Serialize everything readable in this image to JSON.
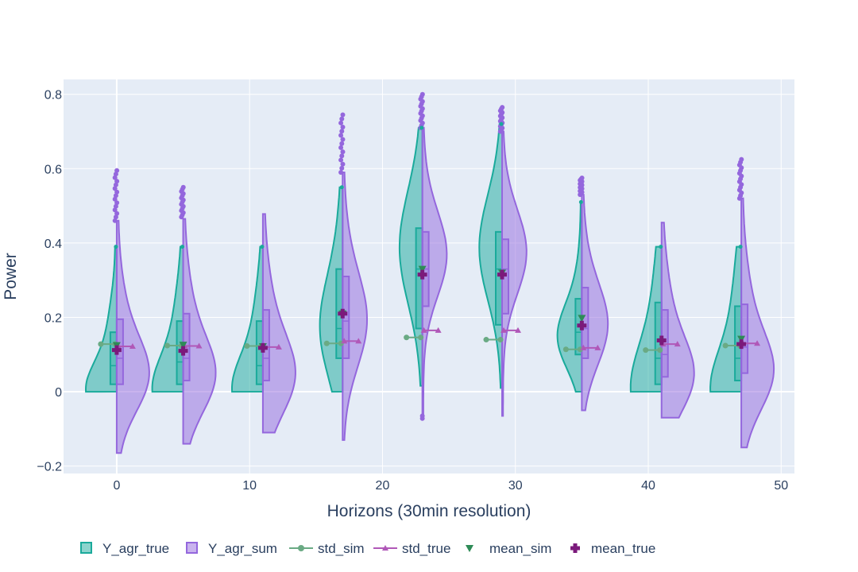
{
  "chart_data": {
    "type": "violin",
    "xlabel": "Horizons (30min resolution)",
    "ylabel": "Power",
    "xlim": [
      -4,
      51
    ],
    "ylim": [
      -0.22,
      0.84
    ],
    "x_ticks": [
      "0",
      "10",
      "20",
      "30",
      "40",
      "50"
    ],
    "y_ticks": [
      "−0.2",
      "0",
      "0.2",
      "0.4",
      "0.6",
      "0.8"
    ],
    "y_tick_values": [
      -0.2,
      0,
      0.2,
      0.4,
      0.6,
      0.8
    ],
    "x_tick_values": [
      0,
      10,
      20,
      30,
      40,
      50
    ],
    "grid": true,
    "legend_position": "bottom",
    "colors": {
      "plot_bg": "#e5ecf6",
      "Y_agr_true": "#1aaa9b",
      "Y_agr_sum": "#9467dd",
      "std_sim": "#6aaa84",
      "std_true": "#b058b8",
      "mean_sim": "#2e8b57",
      "mean_true": "#7b1a7b"
    },
    "groups": [
      {
        "x": 0,
        "true": {
          "min": 0.0,
          "q1": 0.02,
          "median": 0.07,
          "q3": 0.16,
          "max": 0.39,
          "mode": 0.0,
          "width": 0.95
        },
        "sum": {
          "min": -0.165,
          "q1": 0.02,
          "median": 0.09,
          "q3": 0.195,
          "max": 0.46,
          "mode": 0.04,
          "width": 1.0,
          "outliers_from": 0.46,
          "outliers_to": 0.595
        },
        "std_sim": 0.128,
        "std_true": 0.122,
        "mean_sim": 0.125,
        "mean_true": 0.112
      },
      {
        "x": 5,
        "true": {
          "min": 0.0,
          "q1": 0.02,
          "median": 0.08,
          "q3": 0.19,
          "max": 0.39,
          "mode": 0.0,
          "width": 0.95
        },
        "sum": {
          "min": -0.14,
          "q1": 0.03,
          "median": 0.09,
          "q3": 0.21,
          "max": 0.465,
          "mode": 0.04,
          "width": 1.0,
          "outliers_from": 0.47,
          "outliers_to": 0.55
        },
        "std_sim": 0.124,
        "std_true": 0.123,
        "mean_sim": 0.126,
        "mean_true": 0.11
      },
      {
        "x": 11,
        "true": {
          "min": 0.0,
          "q1": 0.02,
          "median": 0.07,
          "q3": 0.19,
          "max": 0.39,
          "mode": 0.0,
          "width": 0.95
        },
        "sum": {
          "min": -0.11,
          "q1": 0.03,
          "median": 0.09,
          "q3": 0.22,
          "max": 0.478,
          "mode": 0.04,
          "width": 1.0
        },
        "std_sim": 0.123,
        "std_true": 0.12,
        "mean_sim": 0.122,
        "mean_true": 0.118
      },
      {
        "x": 17,
        "true": {
          "min": 0.0,
          "q1": 0.09,
          "median": 0.17,
          "q3": 0.33,
          "max": 0.55,
          "mode": 0.16,
          "width": 0.7
        },
        "sum": {
          "min": -0.13,
          "q1": 0.09,
          "median": 0.19,
          "q3": 0.31,
          "max": 0.59,
          "mode": 0.18,
          "width": 0.75,
          "outliers_from": 0.59,
          "outliers_to": 0.745
        },
        "std_sim": 0.13,
        "std_true": 0.136,
        "mean_sim": 0.21,
        "mean_true": 0.21
      },
      {
        "x": 23,
        "true": {
          "min": 0.016,
          "q1": 0.17,
          "median": 0.33,
          "q3": 0.44,
          "max": 0.71,
          "mode": 0.38,
          "width": 0.7
        },
        "sum": {
          "min": -0.07,
          "q1": 0.23,
          "median": 0.33,
          "q3": 0.43,
          "max": 0.71,
          "mode": 0.36,
          "width": 0.75,
          "outliers_from": 0.71,
          "outliers_to": 0.8,
          "low_outliers": [
            -0.065,
            -0.072
          ]
        },
        "std_sim": 0.146,
        "std_true": 0.165,
        "mean_sim": 0.33,
        "mean_true": 0.315
      },
      {
        "x": 29,
        "true": {
          "min": 0.01,
          "q1": 0.18,
          "median": 0.33,
          "q3": 0.43,
          "max": 0.72,
          "mode": 0.38,
          "width": 0.7
        },
        "sum": {
          "min": -0.065,
          "q1": 0.21,
          "median": 0.33,
          "q3": 0.41,
          "max": 0.7,
          "mode": 0.37,
          "width": 0.75,
          "outliers_from": 0.7,
          "outliers_to": 0.765
        },
        "std_sim": 0.14,
        "std_true": 0.165,
        "mean_sim": 0.32,
        "mean_true": 0.315
      },
      {
        "x": 35,
        "true": {
          "min": 0.0,
          "q1": 0.1,
          "median": 0.16,
          "q3": 0.25,
          "max": 0.51,
          "mode": 0.14,
          "width": 0.75
        },
        "sum": {
          "min": -0.05,
          "q1": 0.09,
          "median": 0.17,
          "q3": 0.28,
          "max": 0.53,
          "mode": 0.17,
          "width": 0.8,
          "outliers_from": 0.53,
          "outliers_to": 0.575
        },
        "std_sim": 0.114,
        "std_true": 0.118,
        "mean_sim": 0.198,
        "mean_true": 0.178
      },
      {
        "x": 41,
        "true": {
          "min": 0.0,
          "q1": 0.02,
          "median": 0.09,
          "q3": 0.24,
          "max": 0.39,
          "mode": 0.0,
          "width": 0.95
        },
        "sum": {
          "min": -0.07,
          "q1": 0.04,
          "median": 0.1,
          "q3": 0.22,
          "max": 0.455,
          "mode": 0.04,
          "width": 1.0
        },
        "std_sim": 0.112,
        "std_true": 0.128,
        "mean_sim": 0.135,
        "mean_true": 0.138
      },
      {
        "x": 47,
        "true": {
          "min": 0.0,
          "q1": 0.03,
          "median": 0.09,
          "q3": 0.23,
          "max": 0.39,
          "mode": 0.0,
          "width": 0.95
        },
        "sum": {
          "min": -0.15,
          "q1": 0.05,
          "median": 0.12,
          "q3": 0.235,
          "max": 0.52,
          "mode": 0.05,
          "width": 1.0,
          "outliers_from": 0.52,
          "outliers_to": 0.625
        },
        "std_sim": 0.124,
        "std_true": 0.13,
        "mean_sim": 0.142,
        "mean_true": 0.128
      }
    ]
  },
  "legend": [
    {
      "key": "Y_agr_true",
      "label": "Y_agr_true",
      "symbol": "box"
    },
    {
      "key": "Y_agr_sum",
      "label": "Y_agr_sum",
      "symbol": "box"
    },
    {
      "key": "std_sim",
      "label": "std_sim",
      "symbol": "line-circle"
    },
    {
      "key": "std_true",
      "label": "std_true",
      "symbol": "line-triangle"
    },
    {
      "key": "mean_sim",
      "label": "mean_sim",
      "symbol": "triangle-down"
    },
    {
      "key": "mean_true",
      "label": "mean_true",
      "symbol": "cross"
    }
  ]
}
